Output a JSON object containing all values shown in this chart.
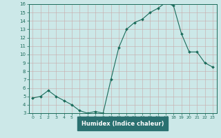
{
  "x": [
    0,
    1,
    2,
    3,
    4,
    5,
    6,
    7,
    8,
    9,
    10,
    11,
    12,
    13,
    14,
    15,
    16,
    17,
    18,
    19,
    20,
    21,
    22,
    23
  ],
  "y": [
    4.8,
    5.0,
    5.7,
    5.0,
    4.5,
    4.0,
    3.3,
    3.0,
    3.2,
    3.0,
    7.0,
    10.8,
    13.0,
    13.8,
    14.2,
    15.0,
    15.5,
    16.2,
    15.8,
    12.5,
    10.3,
    10.3,
    9.0,
    8.5
  ],
  "xlabel": "Humidex (Indice chaleur)",
  "ylim": [
    3,
    16
  ],
  "xlim": [
    -0.5,
    23.5
  ],
  "yticks": [
    3,
    4,
    5,
    6,
    7,
    8,
    9,
    10,
    11,
    12,
    13,
    14,
    15,
    16
  ],
  "xticks": [
    0,
    1,
    2,
    3,
    4,
    5,
    6,
    7,
    8,
    9,
    10,
    11,
    12,
    13,
    14,
    15,
    16,
    17,
    18,
    19,
    20,
    21,
    22,
    23
  ],
  "line_color": "#1a6b5a",
  "marker_color": "#1a6b5a",
  "bg_color": "#cce8e8",
  "grid_color": "#b8d8d8",
  "tick_color": "#1a6b5a",
  "xlabel_color": "#1a6b5a",
  "spine_color": "#1a6b5a",
  "xlabel_bg": "#2a7070"
}
